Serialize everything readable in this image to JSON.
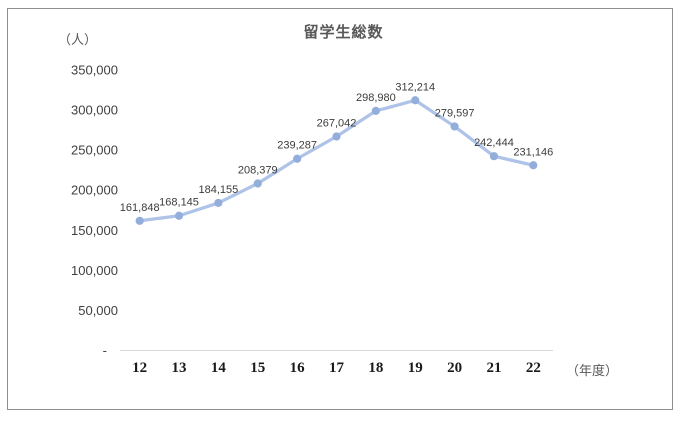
{
  "chart_data": {
    "type": "line",
    "title": "留学生総数",
    "unit_label": "（人）",
    "x_axis_unit": "（年度）",
    "categories": [
      "12",
      "13",
      "14",
      "15",
      "16",
      "17",
      "18",
      "19",
      "20",
      "21",
      "22"
    ],
    "values": [
      161848,
      168145,
      184155,
      208379,
      239287,
      267042,
      298980,
      312214,
      279597,
      242444,
      231146
    ],
    "data_labels": [
      "161,848",
      "168,145",
      "184,155",
      "208,379",
      "239,287",
      "267,042",
      "298,980",
      "312,214",
      "279,597",
      "242,444",
      "231,146"
    ],
    "series_name": "留学生総数",
    "ylim": [
      0,
      350000
    ],
    "y_axis": {
      "ticks": [
        {
          "label": "350,000",
          "value": 350000
        },
        {
          "label": "300,000",
          "value": 300000
        },
        {
          "label": "250,000",
          "value": 250000
        },
        {
          "label": "200,000",
          "value": 200000
        },
        {
          "label": "150,000",
          "value": 150000
        },
        {
          "label": "100,000",
          "value": 100000
        },
        {
          "label": "50,000",
          "value": 50000
        },
        {
          "label": "-",
          "value": 0
        }
      ]
    },
    "grid": "off",
    "legend": "none",
    "colors": {
      "line": "#aec3e7",
      "marker": "#93aedb",
      "axis_line": "#d9d9d9",
      "title_text": "#595959",
      "unit_text": "#595959",
      "y_tick_text": "#3f3f3f",
      "x_tick_text": "#1a1a1a",
      "data_label_text": "#3c3c3c"
    }
  }
}
